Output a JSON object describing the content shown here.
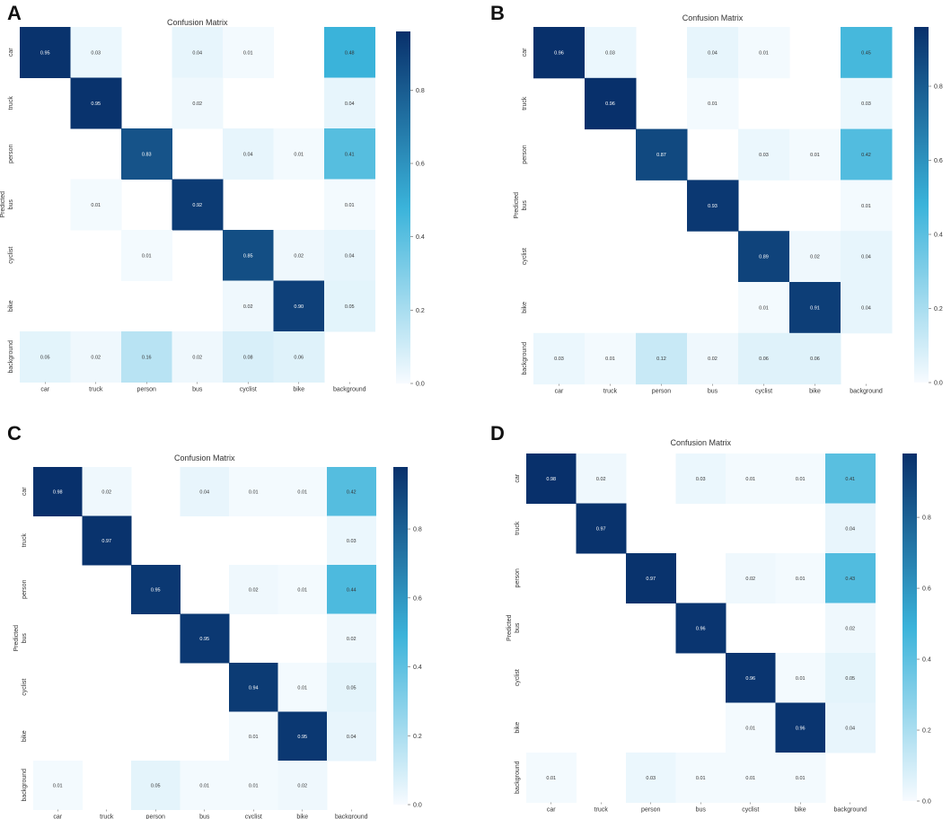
{
  "colormap": {
    "low": "#f7fbff",
    "mid": "#3ab3da",
    "high": "#08306b",
    "text_light": "#ffffff",
    "text_dark": "#333333"
  },
  "chart_data": [
    {
      "type": "heatmap",
      "panel_label": "A",
      "title": "Confusion Matrix",
      "ylabel": "Predicted",
      "xlabel": "",
      "categories": [
        "car",
        "truck",
        "person",
        "bus",
        "cyclist",
        "bike",
        "background"
      ],
      "colorbar_ticks": [
        "0.0",
        "0.2",
        "0.4",
        "0.6",
        "0.8"
      ],
      "vmin": 0,
      "vmax": 0.96,
      "matrix": [
        [
          0.95,
          0.03,
          null,
          0.04,
          0.01,
          null,
          0.48
        ],
        [
          null,
          0.95,
          null,
          0.02,
          null,
          null,
          0.04
        ],
        [
          null,
          null,
          0.83,
          null,
          0.04,
          0.01,
          0.41
        ],
        [
          null,
          0.01,
          null,
          0.92,
          null,
          null,
          0.01
        ],
        [
          null,
          null,
          0.01,
          null,
          0.85,
          0.02,
          0.04
        ],
        [
          null,
          null,
          null,
          null,
          0.02,
          0.9,
          0.05
        ],
        [
          0.05,
          0.02,
          0.16,
          0.02,
          0.08,
          0.06,
          null
        ]
      ]
    },
    {
      "type": "heatmap",
      "panel_label": "B",
      "title": "Confusion Matrix",
      "ylabel": "Predicted",
      "xlabel": "",
      "categories": [
        "car",
        "truck",
        "person",
        "bus",
        "cyclist",
        "bike",
        "background"
      ],
      "colorbar_ticks": [
        "0.0",
        "0.2",
        "0.4",
        "0.6",
        "0.8"
      ],
      "vmin": 0,
      "vmax": 0.96,
      "matrix": [
        [
          0.96,
          0.03,
          null,
          0.04,
          0.01,
          null,
          0.45
        ],
        [
          null,
          0.96,
          null,
          0.01,
          null,
          null,
          0.03
        ],
        [
          null,
          null,
          0.87,
          null,
          0.03,
          0.01,
          0.42
        ],
        [
          null,
          null,
          null,
          0.93,
          null,
          null,
          0.01
        ],
        [
          null,
          null,
          null,
          null,
          0.89,
          0.02,
          0.04
        ],
        [
          null,
          null,
          null,
          null,
          0.01,
          0.91,
          0.04
        ],
        [
          0.03,
          0.01,
          0.12,
          0.02,
          0.06,
          0.06,
          null
        ]
      ]
    },
    {
      "type": "heatmap",
      "panel_label": "C",
      "title": "Confusion Matrix",
      "ylabel": "Predicted",
      "xlabel": "",
      "categories": [
        "car",
        "truck",
        "person",
        "bus",
        "cyclist",
        "bike",
        "background"
      ],
      "colorbar_ticks": [
        "0.0",
        "0.2",
        "0.4",
        "0.6",
        "0.8"
      ],
      "vmin": 0,
      "vmax": 0.98,
      "matrix": [
        [
          0.98,
          0.02,
          null,
          0.04,
          0.01,
          0.01,
          0.42
        ],
        [
          null,
          0.97,
          null,
          null,
          null,
          null,
          0.03
        ],
        [
          null,
          null,
          0.95,
          null,
          0.02,
          0.01,
          0.44
        ],
        [
          null,
          null,
          null,
          0.95,
          null,
          null,
          0.02
        ],
        [
          null,
          null,
          null,
          null,
          0.94,
          0.01,
          0.05
        ],
        [
          null,
          null,
          null,
          null,
          0.01,
          0.95,
          0.04
        ],
        [
          0.01,
          null,
          0.05,
          0.01,
          0.01,
          0.02,
          null
        ]
      ]
    },
    {
      "type": "heatmap",
      "panel_label": "D",
      "title": "Confusion Matrix",
      "ylabel": "Predicted",
      "xlabel": "",
      "categories": [
        "car",
        "truck",
        "person",
        "bus",
        "cyclist",
        "bike",
        "background"
      ],
      "colorbar_ticks": [
        "0.0",
        "0.2",
        "0.4",
        "0.6",
        "0.8"
      ],
      "vmin": 0,
      "vmax": 0.98,
      "matrix": [
        [
          0.98,
          0.02,
          null,
          0.03,
          0.01,
          0.01,
          0.41
        ],
        [
          null,
          0.97,
          null,
          null,
          null,
          null,
          0.04
        ],
        [
          null,
          null,
          0.97,
          null,
          0.02,
          0.01,
          0.43
        ],
        [
          null,
          null,
          null,
          0.96,
          null,
          null,
          0.02
        ],
        [
          null,
          null,
          null,
          null,
          0.96,
          0.01,
          0.05
        ],
        [
          null,
          null,
          null,
          null,
          0.01,
          0.96,
          0.04
        ],
        [
          0.01,
          null,
          0.03,
          0.01,
          0.01,
          0.01,
          null
        ]
      ]
    }
  ]
}
